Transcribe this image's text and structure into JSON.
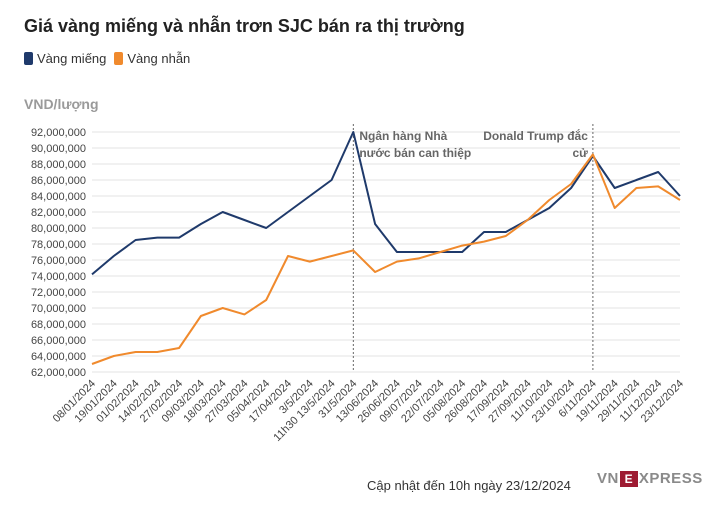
{
  "chart_data": {
    "type": "line",
    "title": "Giá vàng miếng và nhẫn trơn SJC bán ra thị trường",
    "ylabel": "VND/lượng",
    "ylim": [
      62000000,
      92000000
    ],
    "y_ticks": [
      "92,000,000",
      "90,000,000",
      "88,000,000",
      "86,000,000",
      "84,000,000",
      "82,000,000",
      "80,000,000",
      "78,000,000",
      "76,000,000",
      "74,000,000",
      "72,000,000",
      "70,000,000",
      "68,000,000",
      "66,000,000",
      "64,000,000",
      "62,000,000"
    ],
    "x_ticks": [
      "08/01/2024",
      "19/01/2024",
      "01/02/2024",
      "14/02/2024",
      "27/02/2024",
      "09/03/2024",
      "18/03/2024",
      "27/03/2024",
      "05/04/2024",
      "17/04/2024",
      "3/5/2024",
      "11h30 13/5/2024",
      "31/5/2024",
      "13/06/2024",
      "26/06/2024",
      "09/07/2024",
      "22/07/2024",
      "05/08/2024",
      "26/08/2024",
      "17/09/2024",
      "27/09/2024",
      "11/10/2024",
      "23/10/2024",
      "6/11/2024",
      "19/11/2024",
      "29/11/2024",
      "11/12/2024",
      "23/12/2024"
    ],
    "grid": true,
    "legend_position": "top-left",
    "series": [
      {
        "name": "Vàng miếng",
        "color": "#1f3a6b",
        "values": [
          74200000,
          76500000,
          78500000,
          78800000,
          78800000,
          80500000,
          82000000,
          81000000,
          80000000,
          82000000,
          84000000,
          86000000,
          92000000,
          80500000,
          77000000,
          77000000,
          77000000,
          77000000,
          79500000,
          79500000,
          81000000,
          82500000,
          85000000,
          89000000,
          85000000,
          86000000,
          87000000,
          84000000
        ]
      },
      {
        "name": "Vàng nhẫn",
        "color": "#f08a2d",
        "values": [
          63000000,
          64000000,
          64500000,
          64500000,
          65000000,
          69000000,
          70000000,
          69200000,
          71000000,
          76500000,
          75800000,
          76500000,
          77200000,
          74500000,
          75800000,
          76200000,
          77000000,
          77800000,
          78300000,
          79000000,
          81000000,
          83500000,
          85500000,
          89200000,
          82500000,
          85000000,
          85200000,
          83500000
        ]
      }
    ],
    "annotations": [
      {
        "at": "31/5/2024",
        "lines": [
          "Ngân hàng Nhà",
          "nước bán can thiệp"
        ]
      },
      {
        "at": "6/11/2024",
        "lines": [
          "Donald Trump đắc",
          "cử"
        ]
      }
    ]
  },
  "footer": {
    "updated": "Cập nhật đến 10h ngày 23/12/2024"
  },
  "logo": {
    "left": "VN",
    "box": "E",
    "right": "XPRESS"
  }
}
